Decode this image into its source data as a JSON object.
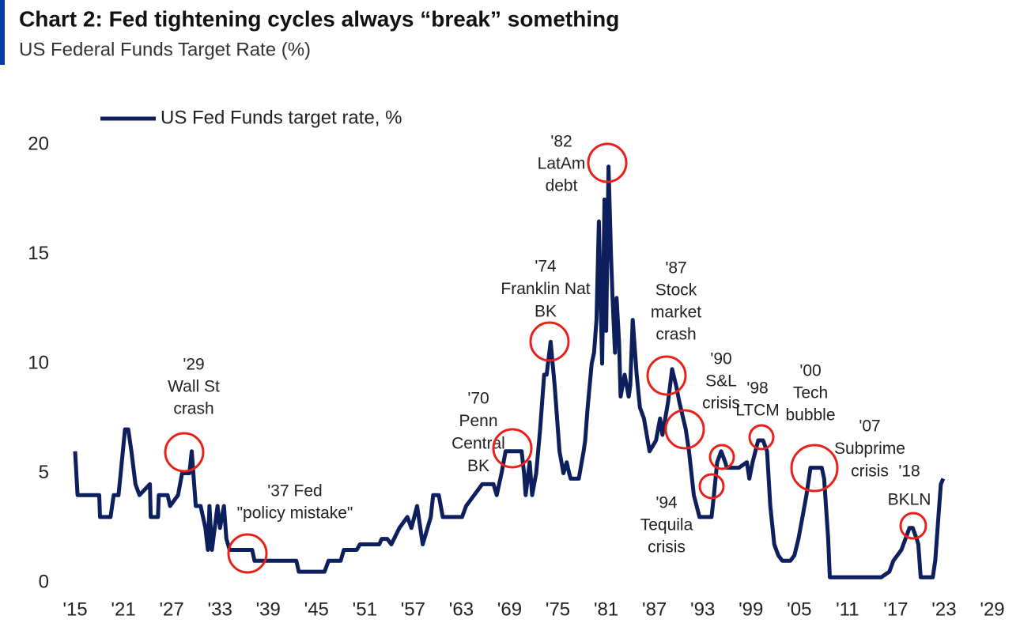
{
  "chart_data": {
    "type": "line",
    "title": "Chart 2: Fed tightening cycles always “break” something",
    "subtitle": "US Federal Funds Target Rate (%)",
    "x": [
      1915,
      1915.3,
      1916.5,
      1918,
      1918.1,
      1919.4,
      1919.8,
      1920.4,
      1921.2,
      1921.6,
      1922,
      1922.5,
      1923,
      1924.3,
      1924.4,
      1925.3,
      1925.4,
      1926.5,
      1926.8,
      1927.8,
      1928.3,
      1929.2,
      1929.5,
      1930,
      1930.6,
      1931.2,
      1931.5,
      1931.7,
      1932,
      1932.7,
      1933,
      1933.5,
      1933.8,
      1934.2,
      1937,
      1937.3,
      1942.5,
      1942.8,
      1946,
      1946.5,
      1948,
      1948.4,
      1950,
      1950.4,
      1952.8,
      1953.1,
      1953.8,
      1954.3,
      1955.3,
      1956.3,
      1956.8,
      1957.5,
      1958.2,
      1959.2,
      1959.5,
      1960.2,
      1960.7,
      1963.1,
      1963.6,
      1964.6,
      1965.6,
      1967,
      1967.4,
      1968,
      1968.5,
      1970.5,
      1970.8,
      1971,
      1971.5,
      1971.8,
      1972.3,
      1972.8,
      1973.3,
      1973.6,
      1974.1,
      1974.6,
      1975.2,
      1975.7,
      1976.1,
      1976.4,
      1976.6,
      1977.6,
      1978.2,
      1978.4,
      1978.7,
      1979.2,
      1979.5,
      1979.8,
      1980.1,
      1980.3,
      1980.5,
      1980.8,
      1981,
      1981.3,
      1981.6,
      1981.8,
      1982.1,
      1982.3,
      1982.6,
      1982.8,
      1983.3,
      1983.8,
      1984,
      1984.3,
      1984.8,
      1985.2,
      1985.7,
      1986.4,
      1987.2,
      1987.7,
      1988,
      1988.7,
      1989.2,
      1989.7,
      1990.1,
      1990.9,
      1991.3,
      1991.9,
      1992.6,
      1994.1,
      1994.4,
      1994.8,
      1995.3,
      1995.8,
      1996,
      1997.5,
      1998.5,
      1998.8,
      1999.2,
      1999.9,
      2000.5,
      2001,
      2001.4,
      2001.9,
      2002.4,
      2002.9,
      2003.9,
      2004.4,
      2004.9,
      2005.4,
      2005.9,
      2006.4,
      2007.8,
      2008.1,
      2008.6,
      2008.8,
      2015.2,
      2016.2,
      2016.7,
      2017.7,
      2018.2,
      2018.7,
      2019.1,
      2019.6,
      2019.8,
      2020.1,
      2021.6,
      2021.9,
      2022.3,
      2022.6,
      2022.9
    ],
    "series": [
      {
        "name": "US Fed Funds target rate, %",
        "color": "#0d1f5c",
        "values": [
          6,
          4,
          4,
          4,
          3,
          3,
          4,
          4,
          7,
          7,
          6,
          4.5,
          4,
          4.5,
          3,
          3,
          4,
          4,
          3.5,
          4,
          5,
          5,
          6,
          3.5,
          3.5,
          2.5,
          1.5,
          3.5,
          1.5,
          3.5,
          2.5,
          3.5,
          2,
          1.5,
          1.5,
          1,
          1,
          0.5,
          0.5,
          1,
          1,
          1.5,
          1.5,
          1.75,
          1.75,
          2,
          2,
          1.75,
          2.5,
          3,
          2.5,
          3.5,
          1.75,
          3,
          4,
          4,
          3,
          3,
          3.5,
          4,
          4.5,
          4.5,
          4,
          5,
          6,
          6,
          5,
          4,
          5.5,
          4,
          5,
          7,
          9.5,
          9.5,
          11,
          9,
          6,
          5,
          5.5,
          5,
          4.75,
          4.75,
          6,
          6.5,
          8,
          10,
          10.5,
          12,
          16.5,
          13,
          10,
          17.5,
          11.5,
          19,
          15,
          13,
          10.5,
          13,
          11,
          8.5,
          9.5,
          8.5,
          9,
          12,
          9.5,
          8,
          7.5,
          6,
          6.5,
          7.5,
          6.75,
          8.25,
          9.75,
          9,
          8.25,
          7,
          6,
          4,
          3,
          3,
          4,
          5.5,
          6,
          5.5,
          5.25,
          5.25,
          5.5,
          4.75,
          5.5,
          6.5,
          6.5,
          6,
          3.5,
          1.75,
          1.25,
          1,
          1,
          1.25,
          2,
          3,
          4,
          5.25,
          5.25,
          4.75,
          2,
          0.25,
          0.25,
          0.5,
          1,
          1.5,
          2,
          2.5,
          2.5,
          2,
          1.75,
          0.25,
          0.25,
          1,
          3,
          4.5,
          4.75
        ]
      }
    ],
    "xlim": [
      1915,
      2029
    ],
    "ylim": [
      0,
      20
    ],
    "xticks": [
      {
        "value": 1915,
        "label": "'15"
      },
      {
        "value": 1921,
        "label": "'21"
      },
      {
        "value": 1927,
        "label": "'27"
      },
      {
        "value": 1933,
        "label": "'33"
      },
      {
        "value": 1939,
        "label": "'39"
      },
      {
        "value": 1945,
        "label": "'45"
      },
      {
        "value": 1951,
        "label": "'51"
      },
      {
        "value": 1957,
        "label": "'57"
      },
      {
        "value": 1963,
        "label": "'63"
      },
      {
        "value": 1969,
        "label": "'69"
      },
      {
        "value": 1975,
        "label": "'75"
      },
      {
        "value": 1981,
        "label": "'81"
      },
      {
        "value": 1987,
        "label": "'87"
      },
      {
        "value": 1993,
        "label": "'93"
      },
      {
        "value": 1999,
        "label": "'99"
      },
      {
        "value": 2005,
        "label": "'05"
      },
      {
        "value": 2011,
        "label": "'11"
      },
      {
        "value": 2017,
        "label": "'17"
      },
      {
        "value": 2023,
        "label": "'23"
      },
      {
        "value": 2029,
        "label": "'29"
      }
    ],
    "yticks": [
      0,
      5,
      10,
      15,
      20
    ],
    "grid": false,
    "annotations": [
      [
        "'29",
        "Wall St",
        "crash"
      ],
      [
        "'37 Fed",
        "\"policy mistake\""
      ],
      [
        "'70",
        "Penn",
        "Central",
        "BK"
      ],
      [
        "'74",
        "Franklin Nat",
        "BK"
      ],
      [
        "'82",
        "LatAm",
        "debt"
      ],
      [
        "'87",
        "Stock",
        "market",
        "crash"
      ],
      [
        "'90",
        "S&L",
        "crisis"
      ],
      [
        "'94",
        "Tequila",
        "crisis"
      ],
      [
        "'98",
        "LTCM"
      ],
      [
        "'00",
        "Tech",
        "bubble"
      ],
      [
        "'07",
        "Subprime",
        "crisis"
      ],
      [
        "'18",
        "BKLN"
      ]
    ]
  }
}
